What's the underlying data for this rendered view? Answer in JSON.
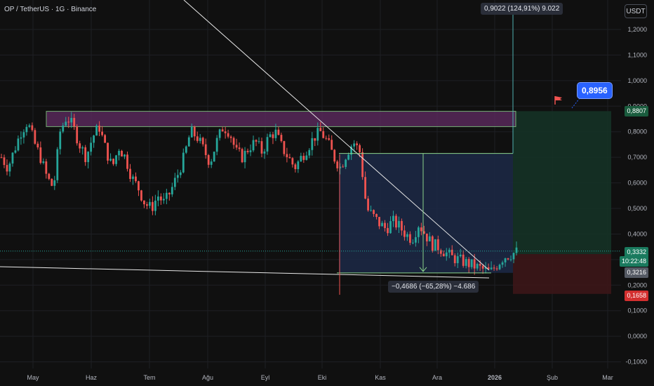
{
  "symbol_title": "OP / TetherUS · 1G · Binance",
  "currency": "USDT",
  "colors": {
    "background": "#101010",
    "grid": "#1e1f24",
    "up": "#26a69a",
    "down": "#ef5350",
    "zone": "#5b2a5e",
    "short_box": "#1c2844",
    "target_box": "#153226",
    "stop_box": "#3a1618",
    "trendline": "#e8e8e8",
    "measure": "#8bd48b",
    "accent": "#2962ff"
  },
  "annotations": {
    "top_measure": "0,9022 (124,91%) 9.022",
    "bottom_measure": "−0,4686 (−65,28%) −4.686",
    "callout": "0,8956"
  },
  "price_tags": {
    "target": "0,8807",
    "last": "0,3332",
    "countdown": "10:22:48",
    "entry": "0,3216",
    "stop": "0,1658"
  },
  "chart_data": {
    "type": "candlestick",
    "ylim": [
      -0.12,
      1.32
    ],
    "y_ticks": [
      "1,2000",
      "1,1000",
      "1,0000",
      "0,9000",
      "0,8000",
      "0,7000",
      "0,6000",
      "0,5000",
      "0,4000",
      "0,3000",
      "0,2000",
      "0,1000",
      "0,0000",
      "-0,1000"
    ],
    "y_tick_values": [
      1.2,
      1.1,
      1.0,
      0.9,
      0.8,
      0.7,
      0.6,
      0.5,
      0.4,
      0.3,
      0.2,
      0.1,
      0.0,
      -0.1
    ],
    "x_ticks": [
      "May",
      "Haz",
      "Tem",
      "Ağu",
      "Eyl",
      "Eki",
      "Kas",
      "Ara",
      "2026",
      "Şub",
      "Mar"
    ],
    "close_path": [
      0.7,
      0.66,
      0.73,
      0.8,
      0.84,
      0.76,
      0.7,
      0.62,
      0.58,
      0.8,
      0.86,
      0.82,
      0.75,
      0.7,
      0.78,
      0.82,
      0.73,
      0.66,
      0.74,
      0.7,
      0.62,
      0.58,
      0.52,
      0.5,
      0.55,
      0.52,
      0.57,
      0.63,
      0.7,
      0.8,
      0.78,
      0.73,
      0.68,
      0.76,
      0.82,
      0.8,
      0.72,
      0.7,
      0.74,
      0.76,
      0.72,
      0.78,
      0.8,
      0.74,
      0.7,
      0.66,
      0.7,
      0.74,
      0.78,
      0.8,
      0.76,
      0.7,
      0.66,
      0.72,
      0.76,
      0.72,
      0.5,
      0.47,
      0.44,
      0.42,
      0.45,
      0.43,
      0.4,
      0.38,
      0.44,
      0.4,
      0.36,
      0.35,
      0.33,
      0.31,
      0.3,
      0.29,
      0.28,
      0.27,
      0.26,
      0.25,
      0.28,
      0.31,
      0.32,
      0.33
    ],
    "levels": {
      "zone_high": 0.88,
      "zone_low": 0.82,
      "short_box_top": 0.715,
      "short_box_bottom": 0.248,
      "target": 0.8807,
      "entry": 0.3216,
      "stop": 0.1658,
      "callout": 0.8956,
      "measure_high": 1.22,
      "last": 0.3332
    }
  }
}
